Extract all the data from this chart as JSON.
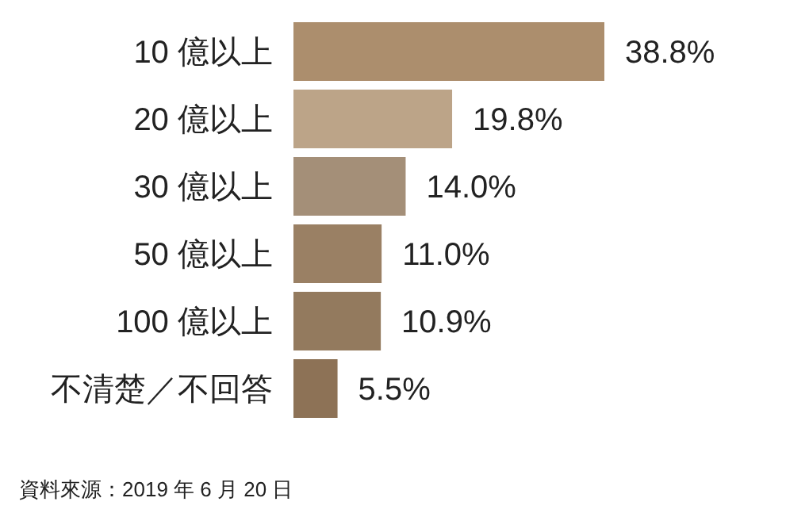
{
  "chart_data": {
    "type": "bar",
    "orientation": "horizontal",
    "data_labels": true,
    "categories": [
      "10 億以上",
      "20 億以上",
      "30 億以上",
      "50 億以上",
      "100 億以上",
      "不清楚／不回答"
    ],
    "values": [
      38.8,
      19.8,
      14.0,
      11.0,
      10.9,
      5.5
    ],
    "value_labels": [
      "38.8%",
      "19.8%",
      "14.0%",
      "11.0%",
      "10.9%",
      "5.5%"
    ],
    "colors": [
      "#ac8e6d",
      "#bca488",
      "#a48f78",
      "#9a8064",
      "#937a5e",
      "#8d7256"
    ],
    "annotations": [
      "資料來源：2019 年 6 月 20 日"
    ]
  }
}
